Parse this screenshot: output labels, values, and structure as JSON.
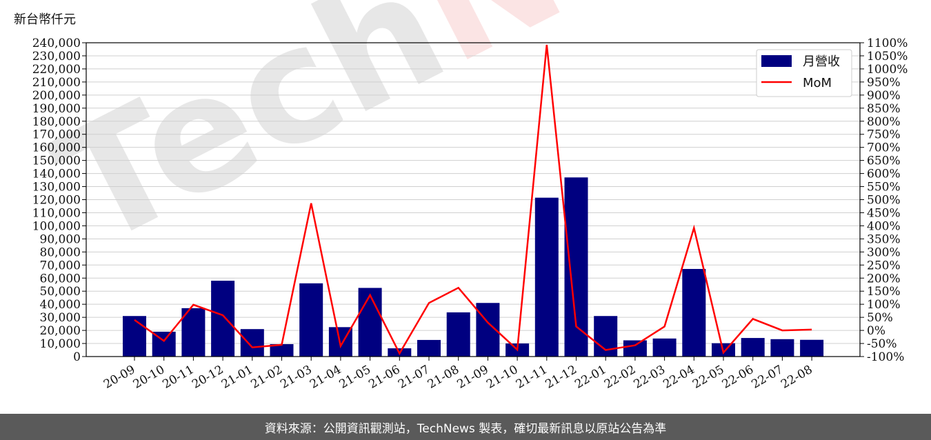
{
  "unit_label": "新台幣仟元",
  "footer_text": "資料來源：公開資訊觀測站，TechNews 製表，確切最新訊息以原站公告為準",
  "watermark_text": "TechNews",
  "colors": {
    "bar": "#000080",
    "line": "#ff0000",
    "watermark_tech": "#bdbdbd",
    "watermark_news": "#f5b5b5",
    "footer_bg": "#5a5a5a"
  },
  "chart_data": {
    "type": "bar",
    "categories": [
      "20-09",
      "20-10",
      "20-11",
      "20-12",
      "21-01",
      "21-02",
      "21-03",
      "21-04",
      "21-05",
      "21-06",
      "21-07",
      "21-08",
      "21-09",
      "21-10",
      "21-11",
      "21-12",
      "22-01",
      "22-02",
      "22-03",
      "22-04",
      "22-05",
      "22-06",
      "22-07",
      "22-08"
    ],
    "series": [
      {
        "name": "月營收",
        "axis": "left",
        "type": "bar",
        "values": [
          31000,
          19000,
          37000,
          58000,
          21000,
          9500,
          56000,
          22500,
          52500,
          6300,
          12700,
          33800,
          41000,
          10000,
          121500,
          137000,
          31000,
          12400,
          13800,
          67000,
          10200,
          14200,
          13300,
          12800
        ]
      },
      {
        "name": "MoM",
        "axis": "right",
        "type": "line",
        "unit": "%",
        "values": [
          40,
          -40,
          98,
          58,
          -65,
          -55,
          486,
          -60,
          135,
          -88,
          105,
          163,
          30,
          -74,
          1092,
          15,
          -75,
          -57,
          15,
          392,
          -85,
          44,
          0,
          3
        ]
      }
    ],
    "y_left": {
      "min": 0,
      "max": 240000,
      "step": 10000
    },
    "y_right": {
      "min": -100,
      "max": 1100,
      "step": 50
    },
    "grid": true,
    "legend_position": "top-right"
  }
}
